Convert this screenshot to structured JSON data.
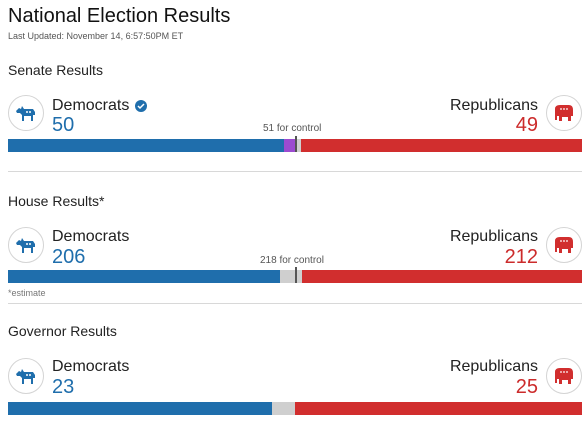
{
  "page": {
    "title": "National Election Results",
    "last_updated": "Last Updated: November 14, 6:57:50PM ET"
  },
  "colors": {
    "democrat": "#1f6eac",
    "republican": "#d12e2e",
    "undecided": "#cfcfcf",
    "independent": "#9c4bd0"
  },
  "senate": {
    "title": "Senate Results",
    "dem_label": "Democrats",
    "dem_count": "50",
    "dem_winner": true,
    "rep_label": "Republicans",
    "rep_count": "49",
    "control_label": "51 for control",
    "bar": {
      "total": 100,
      "dem": 48,
      "independent": 2,
      "undecided": 1,
      "rep": 49
    }
  },
  "house": {
    "title": "House Results*",
    "dem_label": "Democrats",
    "dem_count": "206",
    "rep_label": "Republicans",
    "rep_count": "212",
    "control_label": "218 for control",
    "bar": {
      "total": 435,
      "dem": 206,
      "undecided": 17,
      "rep": 212
    },
    "footnote": "*estimate"
  },
  "governor": {
    "title": "Governor Results",
    "dem_label": "Democrats",
    "dem_count": "23",
    "rep_label": "Republicans",
    "rep_count": "25",
    "bar": {
      "total": 50,
      "dem": 23,
      "undecided": 2,
      "rep": 25
    }
  },
  "icons": {
    "democrat": "donkey-icon",
    "republican": "elephant-icon",
    "winner": "checkmark-icon"
  }
}
